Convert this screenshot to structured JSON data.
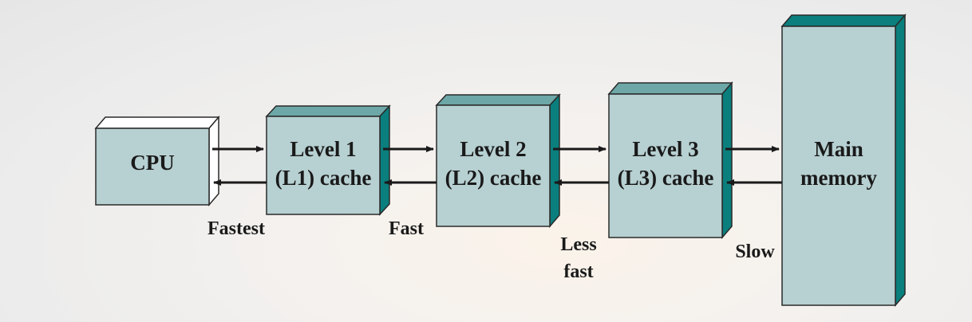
{
  "diagram": {
    "colors": {
      "box_front": "#b7d0d2",
      "box_top_dark": "#6ea7a7",
      "box_side_dark": "#0a7f7d",
      "box_top_light": "#ffffff",
      "box_side_light": "#ffffff",
      "stroke": "#2a2a2a",
      "arrow": "#1a1a1a"
    },
    "cpu": {
      "label": "CPU"
    },
    "l1": {
      "line1": "Level 1",
      "line2": "(L1) cache"
    },
    "l2": {
      "line1": "Level 2",
      "line2": "(L2) cache"
    },
    "l3": {
      "line1": "Level 3",
      "line2": "(L3) cache"
    },
    "memory": {
      "line1": "Main",
      "line2": "memory"
    },
    "speeds": {
      "fastest": "Fastest",
      "fast": "Fast",
      "less_fast_line1": "Less",
      "less_fast_line2": "fast",
      "slow": "Slow"
    }
  }
}
